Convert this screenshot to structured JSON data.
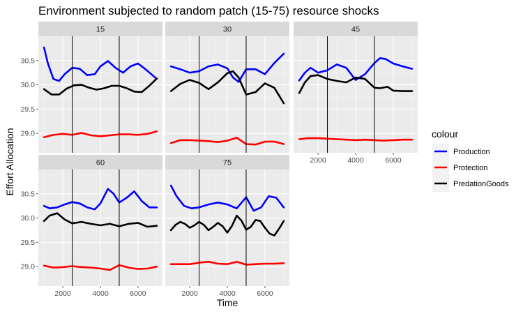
{
  "chart_data": {
    "type": "line",
    "title": "Environment subjected to random patch (15-75) resource shocks",
    "xlabel": "Time",
    "ylabel": "Effort Allocation",
    "xlim": [
      700,
      7300
    ],
    "ylim": [
      28.6,
      31.0
    ],
    "x_ticks": [
      2000,
      4000,
      6000
    ],
    "x_tick_labels": [
      "2000",
      "4000",
      "6000"
    ],
    "y_ticks": [
      29.0,
      29.5,
      30.0,
      30.5
    ],
    "y_tick_labels": [
      "29.0",
      "29.5",
      "30.0",
      "30.5"
    ],
    "vlines": [
      2500,
      5000
    ],
    "grid": true,
    "legend": {
      "title": "colour",
      "position": "right",
      "entries": [
        {
          "label": "Production",
          "color": "#0000ff"
        },
        {
          "label": "Protection",
          "color": "#ff0000"
        },
        {
          "label": "PredationGoods",
          "color": "#000000"
        }
      ]
    },
    "panels": [
      {
        "strip": "15",
        "series": [
          {
            "name": "Production",
            "color": "#0000ff",
            "x": [
              1000,
              1200,
              1500,
              1800,
              2100,
              2500,
              2900,
              3300,
              3700,
              4000,
              4400,
              4800,
              5200,
              5600,
              6000,
              6400,
              7000
            ],
            "y": [
              30.77,
              30.45,
              30.12,
              30.08,
              30.22,
              30.35,
              30.33,
              30.2,
              30.22,
              30.38,
              30.49,
              30.35,
              30.25,
              30.38,
              30.44,
              30.32,
              30.12
            ]
          },
          {
            "name": "Protection",
            "color": "#ff0000",
            "x": [
              1000,
              1500,
              2000,
              2500,
              3000,
              3500,
              4000,
              4500,
              5000,
              5500,
              6000,
              6500,
              7000
            ],
            "y": [
              28.92,
              28.97,
              28.99,
              28.97,
              29.01,
              28.96,
              28.94,
              28.96,
              28.98,
              28.98,
              28.97,
              28.99,
              29.04
            ]
          },
          {
            "name": "PredationGoods",
            "color": "#000000",
            "x": [
              1000,
              1400,
              1800,
              2200,
              2600,
              3000,
              3400,
              3800,
              4200,
              4600,
              5000,
              5400,
              5800,
              6200,
              6600,
              7000
            ],
            "y": [
              29.91,
              29.8,
              29.8,
              29.92,
              29.99,
              30.0,
              29.94,
              29.9,
              29.93,
              29.98,
              29.98,
              29.93,
              29.86,
              29.85,
              29.98,
              30.13
            ]
          }
        ]
      },
      {
        "strip": "30",
        "series": [
          {
            "name": "Production",
            "color": "#0000ff",
            "x": [
              1000,
              1500,
              2000,
              2500,
              3000,
              3500,
              4000,
              4300,
              4600,
              5000,
              5500,
              6000,
              6500,
              7000
            ],
            "y": [
              30.38,
              30.32,
              30.25,
              30.28,
              30.38,
              30.42,
              30.34,
              30.15,
              30.06,
              30.32,
              30.32,
              30.22,
              30.45,
              30.64
            ]
          },
          {
            "name": "Protection",
            "color": "#ff0000",
            "x": [
              1000,
              1500,
              2000,
              2500,
              3000,
              3500,
              4000,
              4500,
              5000,
              5500,
              6000,
              6500,
              7000
            ],
            "y": [
              28.8,
              28.86,
              28.86,
              28.85,
              28.84,
              28.82,
              28.85,
              28.91,
              28.78,
              28.77,
              28.83,
              28.83,
              28.78
            ]
          },
          {
            "name": "PredationGoods",
            "color": "#000000",
            "x": [
              1000,
              1500,
              2000,
              2500,
              3000,
              3500,
              4000,
              4300,
              4600,
              5000,
              5500,
              6000,
              6500,
              7000
            ],
            "y": [
              29.87,
              30.02,
              30.1,
              30.04,
              29.91,
              30.05,
              30.24,
              30.28,
              30.15,
              29.8,
              29.85,
              30.03,
              29.94,
              29.62
            ]
          }
        ]
      },
      {
        "strip": "45",
        "series": [
          {
            "name": "Production",
            "color": "#0000ff",
            "x": [
              1000,
              1300,
              1600,
              2000,
              2500,
              3000,
              3500,
              4000,
              4500,
              5000,
              5300,
              5600,
              6000,
              6500,
              7000
            ],
            "y": [
              30.09,
              30.25,
              30.35,
              30.25,
              30.3,
              30.42,
              30.35,
              30.1,
              30.22,
              30.45,
              30.55,
              30.53,
              30.44,
              30.38,
              30.33
            ]
          },
          {
            "name": "Protection",
            "color": "#ff0000",
            "x": [
              1000,
              1500,
              2000,
              2500,
              3000,
              3500,
              4000,
              4500,
              5000,
              5500,
              6000,
              6500,
              7000
            ],
            "y": [
              28.88,
              28.9,
              28.9,
              28.89,
              28.88,
              28.87,
              28.86,
              28.87,
              28.86,
              28.85,
              28.86,
              28.87,
              28.87
            ]
          },
          {
            "name": "PredationGoods",
            "color": "#000000",
            "x": [
              1000,
              1300,
              1600,
              2000,
              2500,
              3000,
              3500,
              4000,
              4500,
              5000,
              5300,
              5700,
              6000,
              6500,
              7000
            ],
            "y": [
              29.83,
              30.05,
              30.18,
              30.2,
              30.12,
              30.08,
              30.05,
              30.15,
              30.12,
              29.94,
              29.93,
              29.96,
              29.88,
              29.87,
              29.87
            ]
          }
        ]
      },
      {
        "strip": "60",
        "series": [
          {
            "name": "Production",
            "color": "#0000ff",
            "x": [
              1000,
              1300,
              1700,
              2100,
              2500,
              2900,
              3300,
              3700,
              4000,
              4400,
              4700,
              5000,
              5400,
              5800,
              6200,
              6600,
              7000
            ],
            "y": [
              30.25,
              30.2,
              30.22,
              30.28,
              30.33,
              30.3,
              30.22,
              30.18,
              30.3,
              30.6,
              30.5,
              30.32,
              30.42,
              30.55,
              30.35,
              30.22,
              30.22
            ]
          },
          {
            "name": "Protection",
            "color": "#ff0000",
            "x": [
              1000,
              1500,
              2000,
              2500,
              3000,
              3500,
              4000,
              4500,
              5000,
              5500,
              6000,
              6500,
              7000
            ],
            "y": [
              29.02,
              28.98,
              28.99,
              29.01,
              28.99,
              28.98,
              28.96,
              28.93,
              29.03,
              28.98,
              28.95,
              28.96,
              29.0
            ]
          },
          {
            "name": "PredationGoods",
            "color": "#000000",
            "x": [
              1000,
              1300,
              1700,
              2100,
              2500,
              3000,
              3500,
              4000,
              4500,
              5000,
              5500,
              6000,
              6500,
              7000
            ],
            "y": [
              29.94,
              30.05,
              30.1,
              29.97,
              29.89,
              29.92,
              29.88,
              29.85,
              29.88,
              29.83,
              29.88,
              29.9,
              29.82,
              29.84
            ]
          }
        ]
      },
      {
        "strip": "75",
        "series": [
          {
            "name": "Production",
            "color": "#0000ff",
            "x": [
              1000,
              1300,
              1700,
              2100,
              2500,
              3000,
              3500,
              4000,
              4500,
              5000,
              5400,
              5800,
              6200,
              6600,
              7000
            ],
            "y": [
              30.67,
              30.45,
              30.25,
              30.2,
              30.22,
              30.28,
              30.32,
              30.28,
              30.2,
              30.43,
              30.15,
              30.22,
              30.45,
              30.42,
              30.22
            ]
          },
          {
            "name": "Protection",
            "color": "#ff0000",
            "x": [
              1000,
              1500,
              2000,
              2500,
              3000,
              3500,
              4000,
              4500,
              5000,
              5500,
              6000,
              6500,
              7000
            ],
            "y": [
              29.05,
              29.05,
              29.05,
              29.08,
              29.1,
              29.06,
              29.05,
              29.1,
              29.04,
              29.05,
              29.06,
              29.06,
              29.07
            ]
          },
          {
            "name": "PredationGoods",
            "color": "#000000",
            "x": [
              1000,
              1250,
              1500,
              1750,
              2000,
              2250,
              2500,
              2750,
              3000,
              3250,
              3500,
              3750,
              4000,
              4250,
              4500,
              4750,
              5000,
              5250,
              5500,
              5750,
              6000,
              6250,
              6500,
              6750,
              7000
            ],
            "y": [
              29.75,
              29.86,
              29.92,
              29.88,
              29.8,
              29.85,
              29.92,
              29.86,
              29.75,
              29.82,
              29.9,
              29.83,
              29.7,
              29.84,
              30.05,
              29.95,
              29.76,
              29.82,
              29.96,
              29.94,
              29.8,
              29.68,
              29.64,
              29.78,
              29.94
            ]
          }
        ]
      }
    ]
  }
}
